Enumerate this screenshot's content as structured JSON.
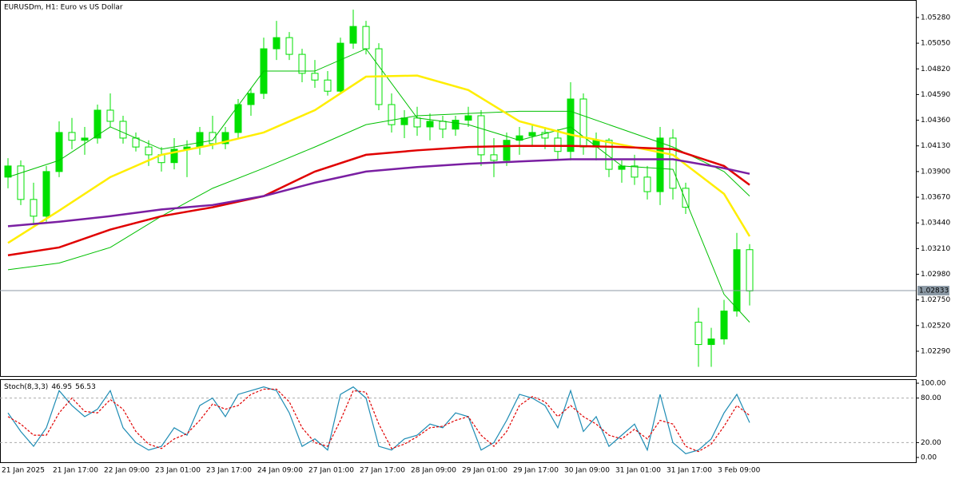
{
  "chart_data": [
    {
      "type": "candlestick",
      "title": "EURUSDm, H1:  Euro vs US Dollar",
      "categories": [
        "21 Jan 2025",
        null,
        null,
        null,
        "21 Jan 17:00",
        null,
        null,
        null,
        "22 Jan 09:00",
        null,
        null,
        null,
        "23 Jan 01:00",
        null,
        null,
        null,
        "23 Jan 17:00",
        null,
        null,
        null,
        "24 Jan 09:00",
        null,
        null,
        null,
        "27 Jan 01:00",
        null,
        null,
        null,
        "27 Jan 17:00",
        null,
        null,
        null,
        "28 Jan 09:00",
        null,
        null,
        null,
        "29 Jan 01:00",
        null,
        null,
        null,
        "29 Jan 17:00",
        null,
        null,
        null,
        "30 Jan 09:00",
        null,
        null,
        null,
        "31 Jan 01:00",
        null,
        null,
        null,
        "31 Jan 17:00",
        null,
        null,
        null,
        "3 Feb 09:00",
        null,
        null
      ],
      "open": [
        1.0385,
        1.0395,
        1.0365,
        1.035,
        1.039,
        1.0425,
        1.0418,
        1.042,
        1.0445,
        1.0435,
        1.042,
        1.0412,
        1.0405,
        1.0398,
        1.041,
        1.0412,
        1.0425,
        1.0415,
        1.0425,
        1.045,
        1.046,
        1.05,
        1.051,
        1.0495,
        1.0478,
        1.0472,
        1.0462,
        1.0505,
        1.052,
        1.05,
        1.045,
        1.0432,
        1.0438,
        1.043,
        1.0435,
        1.0428,
        1.0436,
        1.044,
        1.0405,
        1.04,
        1.0418,
        1.0422,
        1.0425,
        1.042,
        1.0408,
        1.0455,
        1.0412,
        1.0418,
        1.0392,
        1.0395,
        1.0385,
        1.0372,
        1.042,
        1.0375,
        1.0255,
        1.0235,
        1.024,
        1.0265,
        1.032
      ],
      "high": [
        1.0402,
        1.04,
        1.038,
        1.0395,
        1.0435,
        1.0438,
        1.043,
        1.045,
        1.046,
        1.044,
        1.0425,
        1.0418,
        1.0412,
        1.042,
        1.0418,
        1.043,
        1.044,
        1.043,
        1.0455,
        1.0465,
        1.051,
        1.0525,
        1.0515,
        1.05,
        1.049,
        1.048,
        1.051,
        1.0535,
        1.0525,
        1.0505,
        1.046,
        1.0445,
        1.0448,
        1.0442,
        1.044,
        1.044,
        1.0448,
        1.0445,
        1.042,
        1.0425,
        1.043,
        1.0432,
        1.043,
        1.0428,
        1.047,
        1.046,
        1.0425,
        1.042,
        1.04,
        1.0405,
        1.0395,
        1.043,
        1.0428,
        1.038,
        1.0268,
        1.025,
        1.0275,
        1.0335,
        1.0325
      ],
      "low": [
        1.0375,
        1.036,
        1.0342,
        1.0345,
        1.0385,
        1.041,
        1.0405,
        1.0415,
        1.043,
        1.0415,
        1.0408,
        1.0395,
        1.039,
        1.0392,
        1.0385,
        1.0405,
        1.041,
        1.041,
        1.042,
        1.044,
        1.0455,
        1.049,
        1.049,
        1.047,
        1.0465,
        1.0458,
        1.046,
        1.05,
        1.0495,
        1.0445,
        1.0425,
        1.042,
        1.0422,
        1.0418,
        1.042,
        1.0422,
        1.043,
        1.0395,
        1.0385,
        1.0395,
        1.0405,
        1.0412,
        1.041,
        1.04,
        1.04,
        1.0405,
        1.04,
        1.0385,
        1.038,
        1.0378,
        1.0365,
        1.036,
        1.0365,
        1.0352,
        1.0215,
        1.0215,
        1.0235,
        1.026,
        1.027
      ],
      "close": [
        1.0395,
        1.0365,
        1.035,
        1.039,
        1.0425,
        1.0418,
        1.042,
        1.0445,
        1.0435,
        1.042,
        1.0412,
        1.0405,
        1.0398,
        1.041,
        1.0412,
        1.0425,
        1.0415,
        1.0425,
        1.045,
        1.046,
        1.05,
        1.051,
        1.0495,
        1.0478,
        1.0472,
        1.0462,
        1.0505,
        1.052,
        1.05,
        1.045,
        1.0432,
        1.0438,
        1.043,
        1.0435,
        1.0428,
        1.0436,
        1.044,
        1.0405,
        1.04,
        1.0418,
        1.0422,
        1.0425,
        1.042,
        1.0408,
        1.0455,
        1.0412,
        1.0418,
        1.0392,
        1.0395,
        1.0385,
        1.0372,
        1.042,
        1.0375,
        1.0358,
        1.0235,
        1.024,
        1.0265,
        1.032,
        1.0283
      ],
      "candle_color": "#00e000",
      "overlays": [
        {
          "color": "#00c000",
          "width": 1,
          "x": [
            0,
            4,
            8,
            12,
            16,
            20,
            24,
            28,
            32,
            36,
            40,
            44,
            48,
            52,
            56,
            58
          ],
          "values": [
            1.0385,
            1.04,
            1.043,
            1.041,
            1.0418,
            1.048,
            1.048,
            1.05,
            1.0438,
            1.0432,
            1.0418,
            1.043,
            1.0395,
            1.0392,
            1.028,
            1.0255
          ]
        },
        {
          "color": "#00c000",
          "width": 1,
          "x": [
            0,
            4,
            8,
            12,
            16,
            20,
            24,
            28,
            32,
            36,
            40,
            44,
            48,
            52,
            56,
            58
          ],
          "values": [
            1.0302,
            1.0308,
            1.0322,
            1.035,
            1.0375,
            1.0393,
            1.0412,
            1.0432,
            1.044,
            1.0442,
            1.0444,
            1.0444,
            1.0428,
            1.0412,
            1.039,
            1.0368
          ]
        },
        {
          "color": "#ffee00",
          "width": 2.5,
          "x": [
            0,
            4,
            8,
            12,
            16,
            20,
            24,
            28,
            32,
            36,
            40,
            44,
            48,
            52,
            56,
            58
          ],
          "values": [
            1.0326,
            1.0355,
            1.0385,
            1.0405,
            1.0414,
            1.0425,
            1.0445,
            1.0475,
            1.0476,
            1.0463,
            1.0435,
            1.0423,
            1.0414,
            1.0405,
            1.037,
            1.0332
          ]
        },
        {
          "color": "#e00000",
          "width": 2.5,
          "x": [
            0,
            4,
            8,
            12,
            16,
            20,
            24,
            28,
            32,
            36,
            40,
            44,
            48,
            52,
            56,
            58
          ],
          "values": [
            1.0315,
            1.0322,
            1.0338,
            1.035,
            1.0358,
            1.0368,
            1.039,
            1.0405,
            1.0409,
            1.0412,
            1.0413,
            1.0413,
            1.0412,
            1.041,
            1.0395,
            1.0378
          ]
        },
        {
          "color": "#7a1fa2",
          "width": 2.5,
          "x": [
            0,
            4,
            8,
            12,
            16,
            20,
            24,
            28,
            32,
            36,
            40,
            44,
            48,
            52,
            56,
            58
          ],
          "values": [
            1.0341,
            1.0345,
            1.035,
            1.0356,
            1.036,
            1.0368,
            1.038,
            1.039,
            1.0394,
            1.0397,
            1.0399,
            1.0401,
            1.0401,
            1.0401,
            1.0393,
            1.0388
          ]
        }
      ],
      "current_price": {
        "value": 1.02833,
        "label": "1.02833"
      },
      "ylim": [
        1.02068,
        1.05437
      ],
      "yticks": [
        {
          "value": 1.0528,
          "label": "1.05280"
        },
        {
          "value": 1.0505,
          "label": "1.05050"
        },
        {
          "value": 1.0482,
          "label": "1.04820"
        },
        {
          "value": 1.0459,
          "label": "1.04590"
        },
        {
          "value": 1.0436,
          "label": "1.04360"
        },
        {
          "value": 1.0413,
          "label": "1.04130"
        },
        {
          "value": 1.039,
          "label": "1.03900"
        },
        {
          "value": 1.0367,
          "label": "1.03670"
        },
        {
          "value": 1.0344,
          "label": "1.03440"
        },
        {
          "value": 1.0321,
          "label": "1.03210"
        },
        {
          "value": 1.0298,
          "label": "1.02980"
        },
        {
          "value": 1.0275,
          "label": "1.02750"
        },
        {
          "value": 1.0252,
          "label": "1.02520"
        },
        {
          "value": 1.0229,
          "label": "1.02290"
        }
      ]
    },
    {
      "type": "line",
      "title": "Stoch(8,3,3)",
      "series": [
        {
          "color": "#1e8cb4",
          "dash": false,
          "values": [
            60,
            35,
            15,
            40,
            90,
            70,
            55,
            65,
            90,
            40,
            20,
            10,
            15,
            40,
            30,
            70,
            80,
            55,
            85,
            90,
            95,
            90,
            60,
            15,
            25,
            10,
            85,
            95,
            80,
            15,
            10,
            25,
            30,
            45,
            40,
            60,
            55,
            10,
            20,
            50,
            85,
            80,
            70,
            40,
            90,
            35,
            55,
            15,
            30,
            45,
            10,
            85,
            20,
            5,
            10,
            25,
            60,
            85,
            46.95
          ]
        },
        {
          "color": "#e00000",
          "dash": true,
          "values": [
            55,
            45,
            30,
            30,
            60,
            80,
            62,
            60,
            78,
            65,
            35,
            18,
            12,
            25,
            32,
            50,
            72,
            65,
            70,
            85,
            92,
            92,
            75,
            40,
            20,
            15,
            50,
            90,
            88,
            45,
            12,
            18,
            28,
            40,
            42,
            50,
            55,
            30,
            15,
            35,
            70,
            82,
            75,
            55,
            70,
            55,
            45,
            30,
            25,
            38,
            25,
            50,
            45,
            15,
            8,
            18,
            42,
            70,
            56.53
          ]
        }
      ],
      "ylim": [
        -7.5,
        105.4
      ],
      "yticks": [
        {
          "value": 100,
          "label": "100.00"
        },
        {
          "value": 80,
          "label": "80.00"
        },
        {
          "value": 20,
          "label": "20.00"
        },
        {
          "value": 0,
          "label": "0.00"
        }
      ],
      "levels": [
        80,
        20
      ]
    }
  ]
}
